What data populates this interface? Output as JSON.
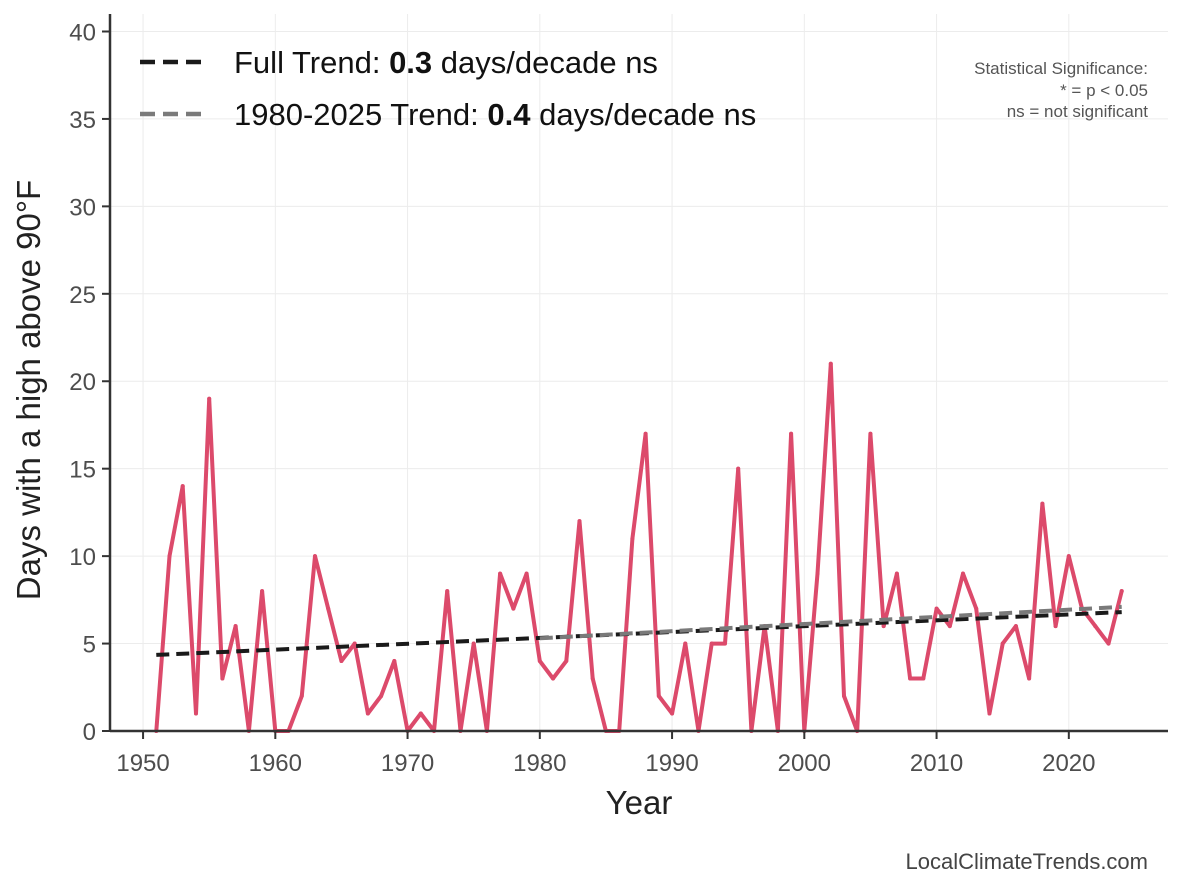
{
  "chart_data": {
    "type": "line",
    "xlabel": "Year",
    "ylabel": "Days with a high above 90°F",
    "xlim": [
      1947.5,
      2027.5
    ],
    "ylim": [
      0,
      41
    ],
    "xticks": [
      1950,
      1960,
      1970,
      1980,
      1990,
      2000,
      2010,
      2020
    ],
    "yticks": [
      0,
      5,
      10,
      15,
      20,
      25,
      30,
      35,
      40
    ],
    "grid": true,
    "x": [
      1951,
      1952,
      1953,
      1954,
      1955,
      1956,
      1957,
      1958,
      1959,
      1960,
      1961,
      1962,
      1963,
      1964,
      1965,
      1966,
      1967,
      1968,
      1969,
      1970,
      1971,
      1972,
      1973,
      1974,
      1975,
      1976,
      1977,
      1978,
      1979,
      1980,
      1981,
      1982,
      1983,
      1984,
      1985,
      1986,
      1987,
      1988,
      1989,
      1990,
      1991,
      1992,
      1993,
      1994,
      1995,
      1996,
      1997,
      1998,
      1999,
      2000,
      2001,
      2002,
      2003,
      2004,
      2005,
      2006,
      2007,
      2008,
      2009,
      2010,
      2011,
      2012,
      2013,
      2014,
      2015,
      2016,
      2017,
      2018,
      2019,
      2020,
      2021,
      2022,
      2023,
      2024
    ],
    "series": [
      {
        "color": "#dc4a6b",
        "values": [
          0,
          10,
          14,
          1,
          19,
          3,
          6,
          0,
          8,
          0,
          0,
          2,
          10,
          7,
          4,
          5,
          1,
          2,
          4,
          0,
          1,
          0,
          8,
          0,
          5,
          0,
          9,
          7,
          9,
          4,
          3,
          4,
          12,
          3,
          0,
          0,
          11,
          17,
          2,
          1,
          5,
          0,
          5,
          5,
          15,
          0,
          6,
          0,
          17,
          0,
          9,
          21,
          2,
          0,
          17,
          6,
          9,
          3,
          3,
          7,
          6,
          9,
          7,
          1,
          5,
          6,
          3,
          13,
          6,
          10,
          7,
          6,
          5,
          8
        ]
      }
    ],
    "trends": [
      {
        "label_prefix": "Full Trend: ",
        "label_value": "0.3",
        "label_suffix": " days/decade ns",
        "color": "#1a1a1a",
        "x": [
          1951,
          2024
        ],
        "y": [
          4.35,
          6.8
        ]
      },
      {
        "label_prefix": "1980-2025 Trend: ",
        "label_value": "0.4",
        "label_suffix": " days/decade ns",
        "color": "#7a7a7a",
        "x": [
          1980,
          2024
        ],
        "y": [
          5.3,
          7.1
        ]
      }
    ],
    "annotation": [
      "Statistical Significance:",
      "* = p < 0.05",
      "ns = not significant"
    ],
    "credit": "LocalClimateTrends.com"
  }
}
